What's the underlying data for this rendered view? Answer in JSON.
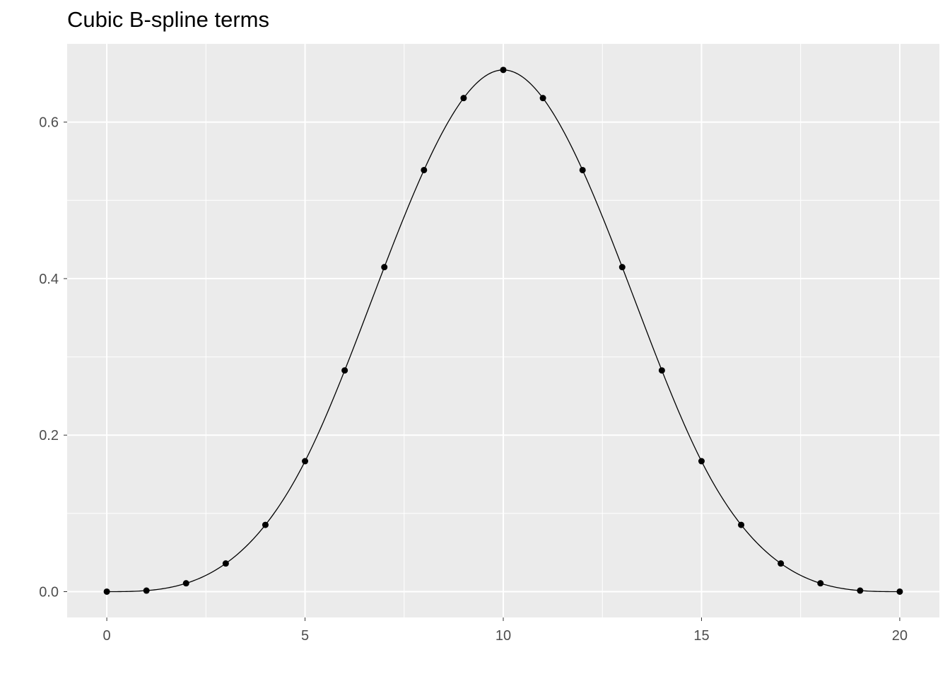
{
  "chart_data": {
    "type": "line",
    "title": "Cubic B-spline terms",
    "xlabel": "",
    "ylabel": "",
    "xlim": [
      -1,
      21
    ],
    "ylim": [
      -0.033,
      0.7
    ],
    "x_ticks": [
      0,
      5,
      10,
      15,
      20
    ],
    "x_tick_labels": [
      "0",
      "5",
      "10",
      "15",
      "20"
    ],
    "y_ticks": [
      0.0,
      0.2,
      0.4,
      0.6
    ],
    "y_tick_labels": [
      "0.0",
      "0.2",
      "0.4",
      "0.6"
    ],
    "grid": true,
    "knots": [
      0,
      5,
      10,
      15,
      20
    ],
    "points": {
      "x": [
        0,
        1,
        2,
        3,
        4,
        5,
        6,
        7,
        8,
        9,
        10,
        11,
        12,
        13,
        14,
        15,
        16,
        17,
        18,
        19,
        20
      ],
      "y": [
        0,
        0.0013,
        0.0107,
        0.036,
        0.0853,
        0.1667,
        0.2827,
        0.4147,
        0.5387,
        0.6307,
        0.6667,
        0.6307,
        0.5387,
        0.4147,
        0.2827,
        0.1667,
        0.0853,
        0.036,
        0.0107,
        0.0013,
        0
      ]
    },
    "colors": {
      "panel": "#ebebeb",
      "grid": "#ffffff",
      "line": "#000000",
      "points": "#000000"
    }
  }
}
